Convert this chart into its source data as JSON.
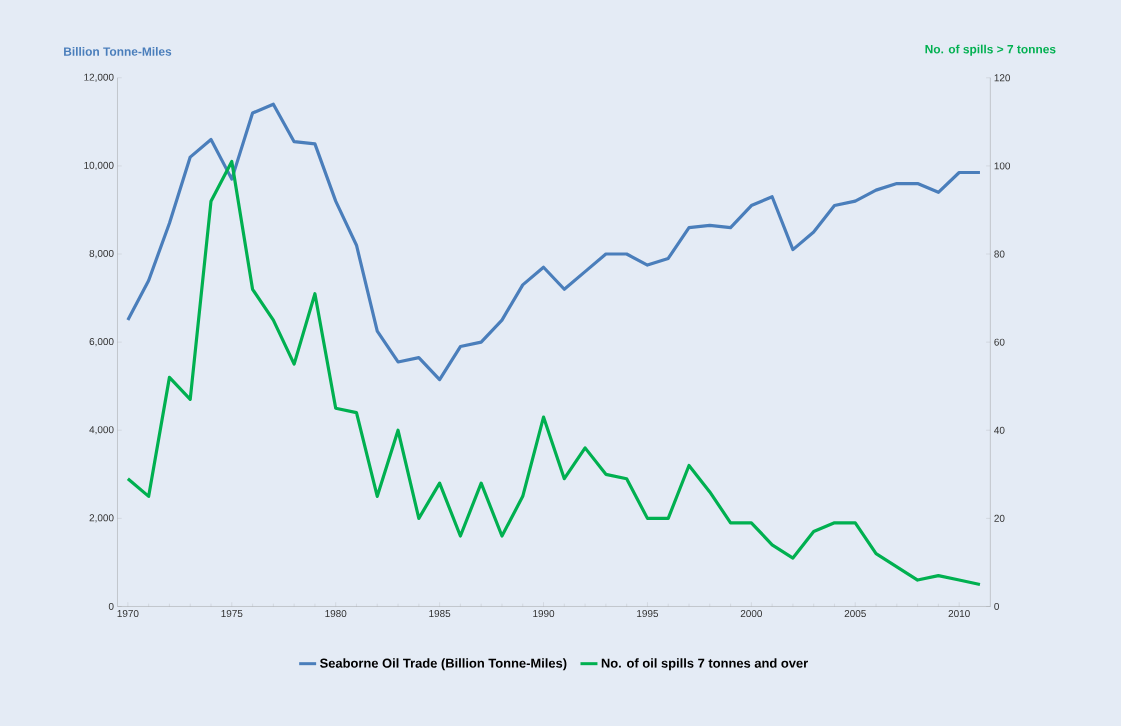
{
  "chart_data": {
    "type": "line",
    "ylabel": "Billion Tonne-Miles",
    "y2label": "No. of spills > 7 tonnes",
    "x": [
      1970,
      1971,
      1972,
      1973,
      1974,
      1975,
      1976,
      1977,
      1978,
      1979,
      1980,
      1981,
      1982,
      1983,
      1984,
      1985,
      1986,
      1987,
      1988,
      1989,
      1990,
      1991,
      1992,
      1993,
      1994,
      1995,
      1996,
      1997,
      1998,
      1999,
      2000,
      2001,
      2002,
      2003,
      2004,
      2005,
      2006,
      2007,
      2008,
      2009,
      2010,
      2011
    ],
    "xlim": [
      1969.5,
      2011.5
    ],
    "xticks": [
      1970,
      1975,
      1980,
      1985,
      1990,
      1995,
      2000,
      2005,
      2010
    ],
    "ylim": [
      0,
      12000
    ],
    "yticks": [
      0,
      {
        "value": 2000,
        "label": "2,000"
      },
      {
        "value": 4000,
        "label": "4,000"
      },
      {
        "value": 6000,
        "label": "6,000"
      },
      {
        "value": 8000,
        "label": "8,000"
      },
      {
        "value": 10000,
        "label": "10,000"
      },
      {
        "value": 12000,
        "label": "12,000"
      }
    ],
    "y2lim": [
      0,
      120
    ],
    "y2ticks": [
      0,
      20,
      40,
      60,
      80,
      100,
      120
    ],
    "series": [
      {
        "name": "Seaborne Oil Trade (Billion  Tonne-Miles)",
        "color": "#4a7ebb",
        "values": [
          6500,
          7400,
          8700,
          10200,
          10600,
          9700,
          11200,
          11400,
          10550,
          10500,
          9200,
          8200,
          6250,
          5550,
          5650,
          5150,
          5900,
          6000,
          6500,
          7300,
          7700,
          7200,
          7600,
          8000,
          8000,
          7750,
          7900,
          8600,
          8650,
          8600,
          9100,
          9300,
          8100,
          8500,
          9100,
          9200,
          9450,
          9600,
          9600,
          9400,
          9850,
          9850
        ]
      },
      {
        "name": "No. of oil spills  7 tonnes and over",
        "color": "#00b050",
        "axis": "y2",
        "values": [
          29,
          25,
          52,
          47,
          92,
          101,
          72,
          65,
          55,
          71,
          45,
          44,
          25,
          40,
          20,
          28,
          16,
          28,
          16,
          25,
          43,
          29,
          36,
          30,
          29,
          20,
          20,
          32,
          26,
          19,
          19,
          14,
          11,
          17,
          19,
          19,
          12,
          9,
          6,
          7,
          6,
          5
        ]
      }
    ],
    "legend": "bottom",
    "line_style": "solid",
    "marker": "none",
    "grid": false
  }
}
